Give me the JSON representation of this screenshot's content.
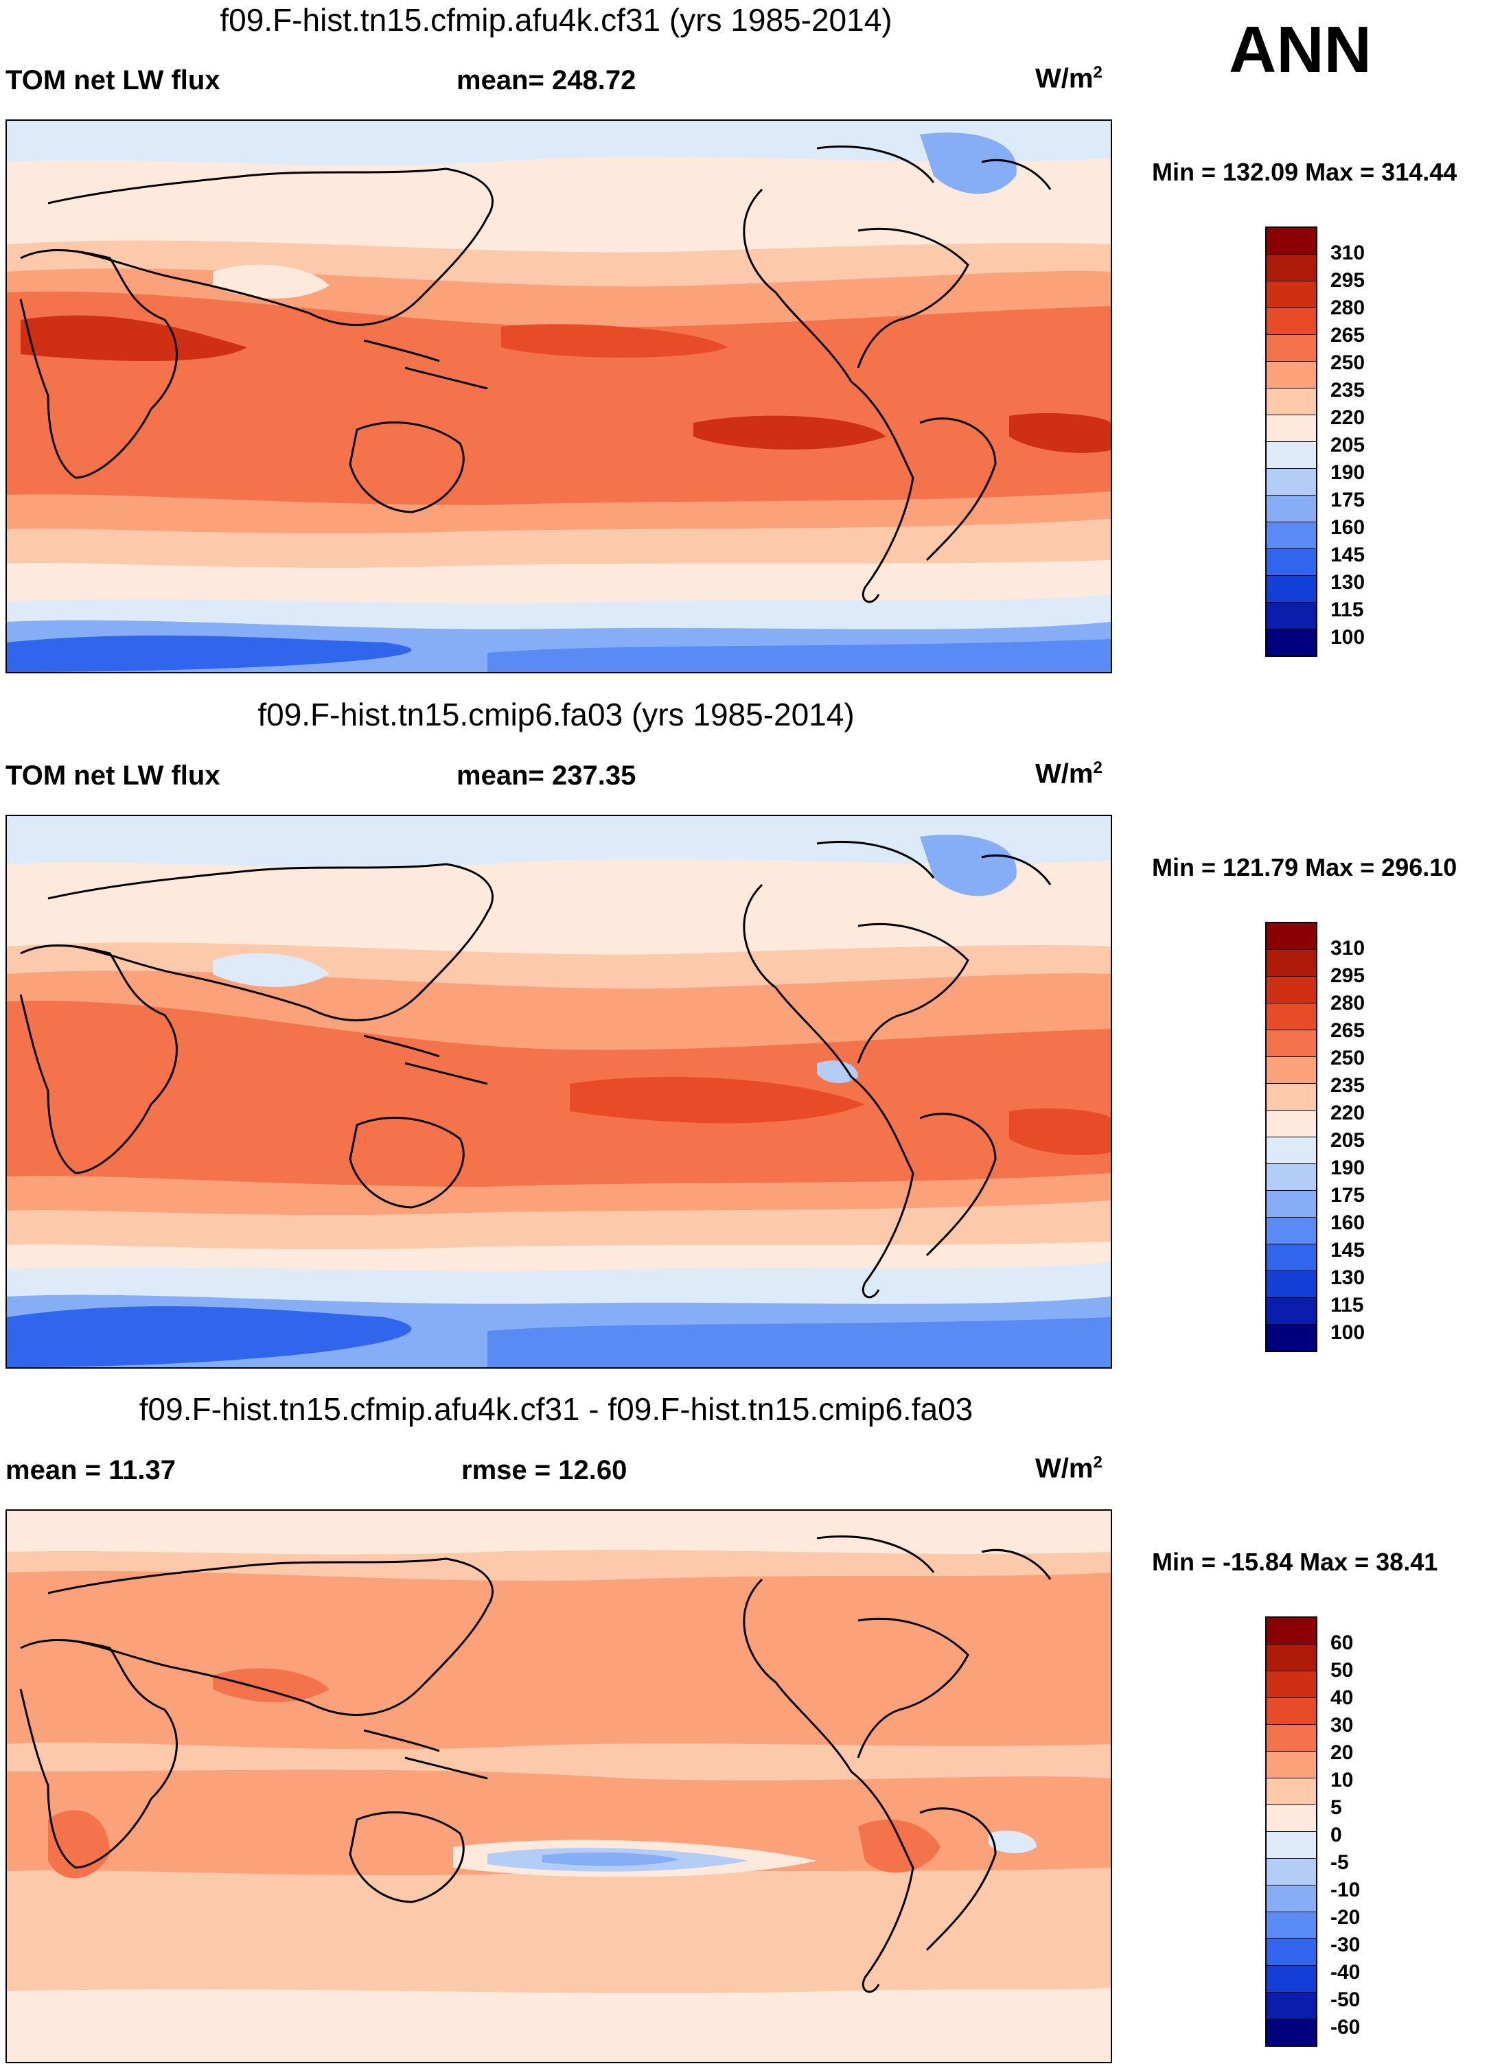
{
  "season": "ANN",
  "colors": {
    "abs_scale": [
      "#00007f",
      "#0a1dad",
      "#143fd6",
      "#3066ed",
      "#5a8bf5",
      "#86aef7",
      "#b4cdf7",
      "#dceafa",
      "#fdeadc",
      "#fcc9aa",
      "#fba27a",
      "#f5734b",
      "#e74b27",
      "#cf3014",
      "#ae1b08",
      "#8b0002"
    ],
    "diff_scale": [
      "#00007f",
      "#0a1dad",
      "#143fd6",
      "#3066ed",
      "#5a8bf5",
      "#86aef7",
      "#b4cdf7",
      "#dceafa",
      "#fdeadc",
      "#fcc9aa",
      "#fba27a",
      "#f5734b",
      "#e74b27",
      "#cf3014",
      "#ae1b08",
      "#8b0002"
    ]
  },
  "panels": [
    {
      "title": "f09.F-hist.tn15.cfmip.afu4k.cf31 (yrs 1985-2014)",
      "left_label": "TOM net LW flux",
      "center_label": "mean= 248.72",
      "unit": "W/m",
      "unit_sup": "2",
      "minmax": "Min = 132.09 Max = 314.44",
      "colorbar_labels": [
        "310",
        "295",
        "280",
        "265",
        "250",
        "235",
        "220",
        "205",
        "190",
        "175",
        "160",
        "145",
        "130",
        "115",
        "100"
      ]
    },
    {
      "title": "f09.F-hist.tn15.cmip6.fa03 (yrs 1985-2014)",
      "left_label": "TOM net LW flux",
      "center_label": "mean= 237.35",
      "unit": "W/m",
      "unit_sup": "2",
      "minmax": "Min = 121.79 Max = 296.10",
      "colorbar_labels": [
        "310",
        "295",
        "280",
        "265",
        "250",
        "235",
        "220",
        "205",
        "190",
        "175",
        "160",
        "145",
        "130",
        "115",
        "100"
      ]
    },
    {
      "title": "f09.F-hist.tn15.cfmip.afu4k.cf31 - f09.F-hist.tn15.cmip6.fa03",
      "left_label": "mean =  11.37",
      "center_label": "rmse =  12.60",
      "unit": "W/m",
      "unit_sup": "2",
      "minmax": "Min = -15.84 Max =  38.41",
      "colorbar_labels": [
        "60",
        "50",
        "40",
        "30",
        "20",
        "10",
        "5",
        "0",
        "-5",
        "-10",
        "-20",
        "-30",
        "-40",
        "-50",
        "-60"
      ]
    }
  ]
}
